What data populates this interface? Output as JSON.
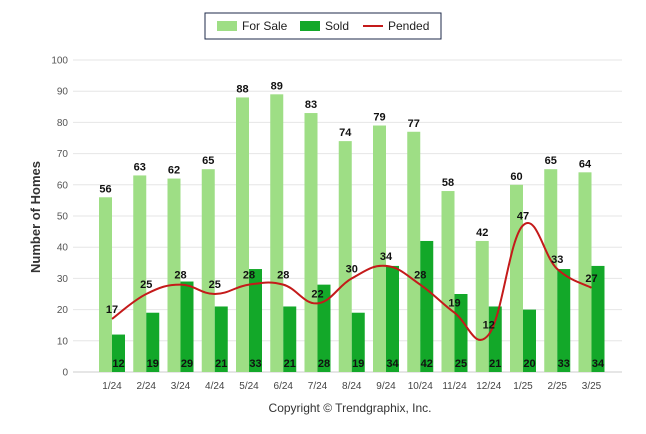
{
  "chart_data": {
    "type": "bar",
    "categories": [
      "1/24",
      "2/24",
      "3/24",
      "4/24",
      "5/24",
      "6/24",
      "7/24",
      "8/24",
      "9/24",
      "10/24",
      "11/24",
      "12/24",
      "1/25",
      "2/25",
      "3/25"
    ],
    "series": [
      {
        "name": "For Sale",
        "type": "bar",
        "color": "#9ede85",
        "values": [
          56,
          63,
          62,
          65,
          88,
          89,
          83,
          74,
          79,
          77,
          58,
          42,
          60,
          65,
          64
        ]
      },
      {
        "name": "Sold",
        "type": "bar",
        "color": "#13a829",
        "values": [
          12,
          19,
          29,
          21,
          33,
          21,
          28,
          19,
          34,
          42,
          25,
          21,
          20,
          33,
          34
        ]
      },
      {
        "name": "Pended",
        "type": "line",
        "color": "#c41a1a",
        "values": [
          17,
          25,
          28,
          25,
          28,
          28,
          22,
          30,
          34,
          28,
          19,
          12,
          47,
          33,
          27
        ]
      }
    ],
    "ylabel": "Number of Homes",
    "ylim": [
      0,
      100
    ],
    "yticks": [
      0,
      10,
      20,
      30,
      40,
      50,
      60,
      70,
      80,
      90,
      100
    ],
    "grid": true,
    "legend": "top-center",
    "footer": "Copyright © Trendgraphix, Inc."
  }
}
